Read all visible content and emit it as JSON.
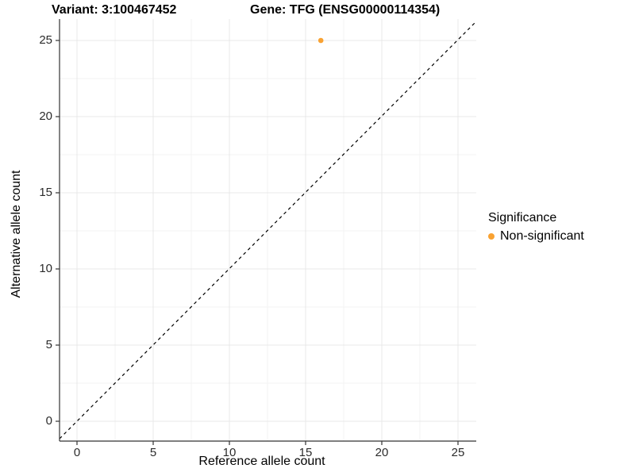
{
  "header": {
    "variant_title": "Variant: 3:100467452",
    "gene_title": "Gene: TFG (ENSG00000114354)"
  },
  "axes": {
    "x": {
      "label": "Reference allele count"
    },
    "y": {
      "label": "Alternative allele count"
    }
  },
  "legend": {
    "title": "Significance",
    "items": [
      {
        "label": "Non-significant",
        "color": "#F9A232",
        "marker": "filled-circle"
      }
    ]
  },
  "colors": {
    "point": "#F9A232",
    "grid_major": "#E8E8E8",
    "grid_minor": "#F3F3F3",
    "axis_line": "#333333",
    "tick_text": "#2b2b2b",
    "identity_line": "#000000"
  },
  "chart_data": {
    "type": "scatter",
    "title": "Variant: 3:100467452 | Gene: TFG (ENSG00000114354)",
    "xlabel": "Reference allele count",
    "ylabel": "Alternative allele count",
    "xlim": [
      -1.3,
      26.3
    ],
    "ylim": [
      -1.3,
      26.3
    ],
    "x_ticks": [
      0,
      5,
      10,
      15,
      20,
      25
    ],
    "y_ticks": [
      0,
      5,
      10,
      15,
      20,
      25
    ],
    "x_minor_ticks": [
      2.5,
      7.5,
      12.5,
      17.5,
      22.5
    ],
    "y_minor_ticks": [
      2.5,
      7.5,
      12.5,
      17.5,
      22.5
    ],
    "grid": true,
    "legend_position": "right",
    "series": [
      {
        "name": "Non-significant",
        "color": "#F9A232",
        "points": [
          {
            "x": 16,
            "y": 25
          }
        ]
      }
    ],
    "reference_line": {
      "kind": "identity y=x",
      "style": "dashed",
      "color": "#000000"
    }
  }
}
